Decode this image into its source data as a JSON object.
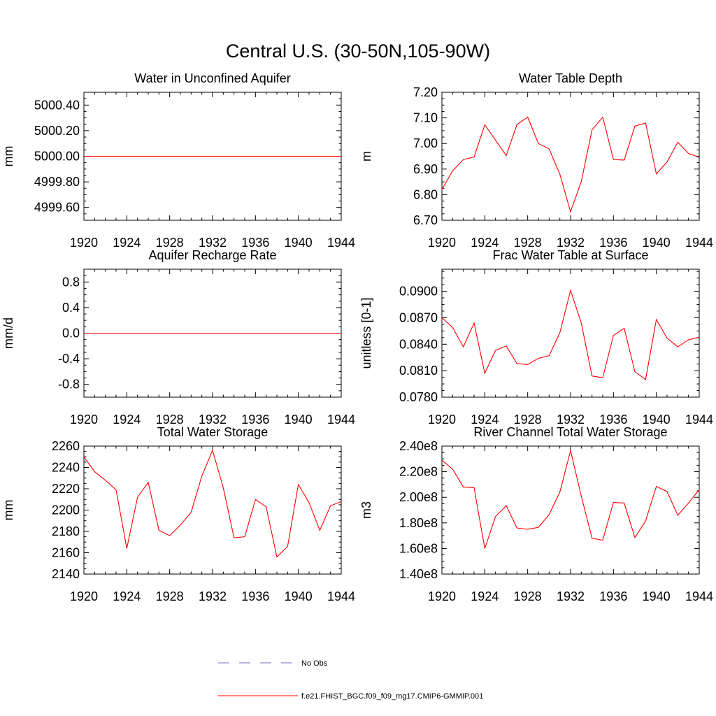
{
  "title": "Central U.S. (30-50N,105-90W)",
  "legend": {
    "placement": "bottom-center",
    "entries": [
      {
        "label": "No Obs",
        "color": "#6f6fbf",
        "style": "dashed"
      },
      {
        "label": "f.e21.FHIST_BGC.f09_f09_mg17.CMIP6-GMMIP.001",
        "color": "#ff0000",
        "style": "solid"
      }
    ]
  },
  "chart_data": [
    {
      "type": "line",
      "title": "Water in Unconfined Aquifer",
      "ylabel": "mm",
      "xlim": [
        1920,
        1944
      ],
      "ylim": [
        4999.5,
        5000.5
      ],
      "xticks": [
        "1920",
        "1924",
        "1928",
        "1932",
        "1936",
        "1940",
        "1944"
      ],
      "yticks": [
        {
          "v": 4999.6,
          "label": "4999.60"
        },
        {
          "v": 4999.8,
          "label": "4999.80"
        },
        {
          "v": 5000.0,
          "label": "5000.00"
        },
        {
          "v": 5000.2,
          "label": "5000.20"
        },
        {
          "v": 5000.4,
          "label": "5000.40"
        }
      ],
      "color": "#ff0000",
      "x": [
        1920,
        1921,
        1922,
        1923,
        1924,
        1925,
        1926,
        1927,
        1928,
        1929,
        1930,
        1931,
        1932,
        1933,
        1934,
        1935,
        1936,
        1937,
        1938,
        1939,
        1940,
        1941,
        1942,
        1943,
        1944
      ],
      "y": [
        5000,
        5000,
        5000,
        5000,
        5000,
        5000,
        5000,
        5000,
        5000,
        5000,
        5000,
        5000,
        5000,
        5000,
        5000,
        5000,
        5000,
        5000,
        5000,
        5000,
        5000,
        5000,
        5000,
        5000,
        5000
      ]
    },
    {
      "type": "line",
      "title": "Water Table Depth",
      "ylabel": "m",
      "xlim": [
        1920,
        1944
      ],
      "ylim": [
        6.7,
        7.2
      ],
      "xticks": [
        "1920",
        "1924",
        "1928",
        "1932",
        "1936",
        "1940",
        "1944"
      ],
      "yticks": [
        {
          "v": 6.7,
          "label": "6.70"
        },
        {
          "v": 6.8,
          "label": "6.80"
        },
        {
          "v": 6.9,
          "label": "6.90"
        },
        {
          "v": 7.0,
          "label": "7.00"
        },
        {
          "v": 7.1,
          "label": "7.10"
        },
        {
          "v": 7.2,
          "label": "7.20"
        }
      ],
      "color": "#ff0000",
      "x": [
        1920,
        1921,
        1922,
        1923,
        1924,
        1925,
        1926,
        1927,
        1928,
        1929,
        1930,
        1931,
        1932,
        1933,
        1934,
        1935,
        1936,
        1937,
        1938,
        1939,
        1940,
        1941,
        1942,
        1943,
        1944
      ],
      "y": [
        6.82,
        6.893,
        6.937,
        6.947,
        7.073,
        7.013,
        6.953,
        7.074,
        7.103,
        7.0,
        6.979,
        6.88,
        6.733,
        6.851,
        7.053,
        7.103,
        6.937,
        6.935,
        7.068,
        7.08,
        6.881,
        6.928,
        7.005,
        6.961,
        6.946
      ]
    },
    {
      "type": "line",
      "title": "Aquifer Recharge Rate",
      "ylabel": "mm/d",
      "xlim": [
        1920,
        1944
      ],
      "ylim": [
        -1.0,
        1.0
      ],
      "xticks": [
        "1920",
        "1924",
        "1928",
        "1932",
        "1936",
        "1940",
        "1944"
      ],
      "yticks": [
        {
          "v": -0.8,
          "label": "-0.8"
        },
        {
          "v": -0.4,
          "label": "-0.4"
        },
        {
          "v": 0.0,
          "label": "0.0"
        },
        {
          "v": 0.4,
          "label": "0.4"
        },
        {
          "v": 0.8,
          "label": "0.8"
        }
      ],
      "color": "#ff0000",
      "x": [
        1920,
        1921,
        1922,
        1923,
        1924,
        1925,
        1926,
        1927,
        1928,
        1929,
        1930,
        1931,
        1932,
        1933,
        1934,
        1935,
        1936,
        1937,
        1938,
        1939,
        1940,
        1941,
        1942,
        1943,
        1944
      ],
      "y": [
        0,
        0,
        0,
        0,
        0,
        0,
        0,
        0,
        0,
        0,
        0,
        0,
        0,
        0,
        0,
        0,
        0,
        0,
        0,
        0,
        0,
        0,
        0,
        0,
        0
      ]
    },
    {
      "type": "line",
      "title": "Frac Water Table at Surface",
      "ylabel": "unitless [0-1]",
      "xlim": [
        1920,
        1944
      ],
      "ylim": [
        0.078,
        0.0925
      ],
      "xticks": [
        "1920",
        "1924",
        "1928",
        "1932",
        "1936",
        "1940",
        "1944"
      ],
      "yticks": [
        {
          "v": 0.078,
          "label": "0.0780"
        },
        {
          "v": 0.081,
          "label": "0.0810"
        },
        {
          "v": 0.084,
          "label": "0.0840"
        },
        {
          "v": 0.087,
          "label": "0.0870"
        },
        {
          "v": 0.09,
          "label": "0.0900"
        }
      ],
      "color": "#ff0000",
      "x": [
        1920,
        1921,
        1922,
        1923,
        1924,
        1925,
        1926,
        1927,
        1928,
        1929,
        1930,
        1931,
        1932,
        1933,
        1934,
        1935,
        1936,
        1937,
        1938,
        1939,
        1940,
        1941,
        1942,
        1943,
        1944
      ],
      "y": [
        0.087,
        0.0859,
        0.0837,
        0.0864,
        0.0807,
        0.0833,
        0.0838,
        0.0818,
        0.0817,
        0.0824,
        0.0827,
        0.0853,
        0.0901,
        0.0864,
        0.0804,
        0.0802,
        0.085,
        0.0858,
        0.0809,
        0.08,
        0.0868,
        0.0847,
        0.0837,
        0.0845,
        0.0848
      ]
    },
    {
      "type": "line",
      "title": "Total Water Storage",
      "ylabel": "mm",
      "xlim": [
        1920,
        1944
      ],
      "ylim": [
        2140,
        2260
      ],
      "xticks": [
        "1920",
        "1924",
        "1928",
        "1932",
        "1936",
        "1940",
        "1944"
      ],
      "yticks": [
        {
          "v": 2140,
          "label": "2140"
        },
        {
          "v": 2160,
          "label": "2160"
        },
        {
          "v": 2180,
          "label": "2180"
        },
        {
          "v": 2200,
          "label": "2200"
        },
        {
          "v": 2220,
          "label": "2220"
        },
        {
          "v": 2240,
          "label": "2240"
        },
        {
          "v": 2260,
          "label": "2260"
        }
      ],
      "color": "#ff0000",
      "x": [
        1920,
        1921,
        1922,
        1923,
        1924,
        1925,
        1926,
        1927,
        1928,
        1929,
        1930,
        1931,
        1932,
        1933,
        1934,
        1935,
        1936,
        1937,
        1938,
        1939,
        1940,
        1941,
        1942,
        1943,
        1944
      ],
      "y": [
        2250,
        2236,
        2228,
        2219,
        2164,
        2212,
        2226,
        2181,
        2176,
        2186,
        2198,
        2232,
        2256,
        2221,
        2174,
        2175,
        2210,
        2203,
        2156,
        2166,
        2224,
        2207,
        2181,
        2204,
        2208
      ]
    },
    {
      "type": "line",
      "title": "River Channel Total Water Storage",
      "ylabel": "m3",
      "xlim": [
        1920,
        1944
      ],
      "ylim": [
        140000000,
        240000000
      ],
      "xticks": [
        "1920",
        "1924",
        "1928",
        "1932",
        "1936",
        "1940",
        "1944"
      ],
      "yticks": [
        {
          "v": 140000000,
          "label": "1.40e8"
        },
        {
          "v": 160000000,
          "label": "1.60e8"
        },
        {
          "v": 180000000,
          "label": "1.80e8"
        },
        {
          "v": 200000000,
          "label": "2.00e8"
        },
        {
          "v": 220000000,
          "label": "2.20e8"
        },
        {
          "v": 240000000,
          "label": "2.40e8"
        }
      ],
      "color": "#ff0000",
      "x": [
        1920,
        1921,
        1922,
        1923,
        1924,
        1925,
        1926,
        1927,
        1928,
        1929,
        1930,
        1931,
        1932,
        1933,
        1934,
        1935,
        1936,
        1937,
        1938,
        1939,
        1940,
        1941,
        1942,
        1943,
        1944
      ],
      "y": [
        229000000,
        222000000,
        208000000,
        207500000,
        160000000,
        185000000,
        193500000,
        176000000,
        175000000,
        176500000,
        186500000,
        204000000,
        236500000,
        201000000,
        168000000,
        166500000,
        196000000,
        195500000,
        168500000,
        181500000,
        208500000,
        204500000,
        186000000,
        195500000,
        206000000
      ]
    }
  ]
}
